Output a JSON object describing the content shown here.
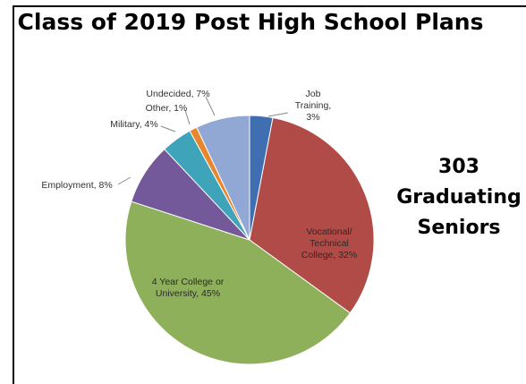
{
  "title": "Class of 2019 Post High School Plans",
  "side_note": {
    "line1": "303",
    "line2": "Graduating",
    "line3": "Seniors"
  },
  "chart_data": {
    "type": "pie",
    "title": "Class of 2019 Post High School Plans",
    "slices": [
      {
        "label": [
          "Job",
          "Training,",
          "3%"
        ],
        "value": 3,
        "color": "#3f6fb0"
      },
      {
        "label": [
          "Vocational/",
          "Technical",
          "College, 32%"
        ],
        "value": 32,
        "color": "#b04b48"
      },
      {
        "label": [
          "4 Year College or",
          "University, 45%"
        ],
        "value": 45,
        "color": "#8fb05a"
      },
      {
        "label": [
          "Employment, 8%"
        ],
        "value": 8,
        "color": "#73589a"
      },
      {
        "label": [
          "Military, 4%"
        ],
        "value": 4,
        "color": "#3fa3ba"
      },
      {
        "label": [
          "Other, 1%"
        ],
        "value": 1,
        "color": "#e8862f"
      },
      {
        "label": [
          "Undecided, 7%"
        ],
        "value": 7,
        "color": "#91a8d4"
      }
    ]
  }
}
